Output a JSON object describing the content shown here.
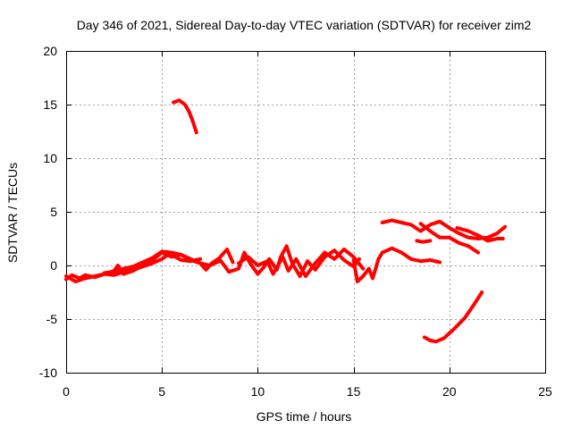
{
  "chart_data": {
    "type": "line",
    "title": "Day 346 of 2021, Sidereal Day-to-day VTEC variation (SDTVAR) for receiver zim2",
    "xlabel": "GPS time / hours",
    "ylabel": "SDTVAR / TECUs",
    "xlim": [
      0,
      25
    ],
    "ylim": [
      -10,
      20
    ],
    "xticks": [
      0,
      5,
      10,
      15,
      20,
      25
    ],
    "yticks": [
      -10,
      -5,
      0,
      5,
      10,
      15,
      20
    ],
    "xtick_labels": [
      "0",
      "5",
      "10",
      "15",
      "20",
      "25"
    ],
    "ytick_labels": [
      "-10",
      "-5",
      "0",
      "5",
      "10",
      "15",
      "20"
    ],
    "grid": true,
    "color": "#ff0000",
    "series": [
      {
        "name": "s1",
        "x": [
          5.6,
          5.9,
          6.2,
          6.4,
          6.6,
          6.8
        ],
        "y": [
          15.2,
          15.4,
          15.0,
          14.4,
          13.5,
          12.4
        ]
      },
      {
        "name": "s2",
        "x": [
          0.0,
          0.3,
          0.7,
          1.0,
          1.5,
          2.0,
          2.5,
          3.0,
          3.5,
          4.0,
          4.5,
          5.0,
          5.3,
          5.7,
          6.0,
          6.5,
          7.0
        ],
        "y": [
          -1.3,
          -0.9,
          -1.2,
          -0.9,
          -1.1,
          -0.8,
          -0.9,
          -0.6,
          -0.4,
          -0.1,
          0.2,
          0.6,
          1.0,
          0.8,
          0.5,
          0.4,
          0.6
        ]
      },
      {
        "name": "s3",
        "x": [
          0.0,
          0.5,
          1.0,
          1.5,
          2.0,
          2.5,
          2.7,
          3.0,
          3.5,
          4.0,
          4.5,
          5.0,
          5.5,
          6.0,
          6.5,
          7.0,
          7.5,
          8.0
        ],
        "y": [
          -1.0,
          -1.5,
          -1.2,
          -1.0,
          -0.8,
          -0.5,
          0.0,
          -0.8,
          -0.5,
          0.0,
          0.5,
          1.2,
          0.8,
          1.0,
          0.5,
          0.2,
          0.0,
          0.4
        ]
      },
      {
        "name": "s4",
        "x": [
          2.0,
          2.5,
          3.0,
          3.5,
          4.0,
          4.5,
          5.0,
          5.5,
          6.0,
          6.5,
          7.0,
          7.3,
          7.6,
          8.0,
          8.4,
          8.7
        ],
        "y": [
          -0.7,
          -0.6,
          -0.3,
          -0.1,
          0.3,
          0.7,
          1.3,
          1.2,
          1.0,
          0.6,
          0.2,
          -0.4,
          0.2,
          0.7,
          1.5,
          0.3
        ]
      },
      {
        "name": "s5",
        "x": [
          8.0,
          8.5,
          9.0,
          9.3,
          9.6,
          10.0,
          10.3,
          10.6,
          11.0,
          11.2,
          11.5,
          11.8,
          12.2,
          12.6,
          13.0,
          13.5,
          14.0,
          14.5,
          15.0,
          15.3
        ],
        "y": [
          0.6,
          -0.6,
          -0.3,
          1.2,
          0.2,
          -0.8,
          -0.2,
          0.6,
          -0.4,
          0.8,
          1.8,
          0.2,
          -1.0,
          0.4,
          -0.4,
          0.8,
          1.4,
          0.5,
          -0.1,
          0.6
        ]
      },
      {
        "name": "s6",
        "x": [
          9.0,
          9.5,
          10.0,
          10.5,
          10.8,
          11.0,
          11.3,
          11.6,
          12.0,
          12.5,
          13.0,
          13.5,
          14.0,
          14.5,
          15.0,
          15.5
        ],
        "y": [
          0.2,
          0.8,
          0.0,
          0.4,
          -0.8,
          -0.2,
          0.8,
          -0.5,
          0.6,
          -1.0,
          0.2,
          1.2,
          0.6,
          1.5,
          0.8,
          -0.3
        ]
      },
      {
        "name": "s7",
        "x": [
          15.0,
          15.2,
          15.5,
          15.8,
          16.0,
          16.3,
          16.5,
          17.0,
          17.5,
          18.0,
          18.5,
          19.0,
          19.5
        ],
        "y": [
          0.5,
          -1.5,
          -1.0,
          -0.3,
          -1.2,
          0.6,
          1.2,
          1.6,
          1.2,
          0.6,
          0.4,
          0.5,
          0.3
        ]
      },
      {
        "name": "s8",
        "x": [
          16.5,
          17.0,
          17.5,
          18.0,
          18.5,
          19.0,
          19.5,
          20.0,
          20.5,
          21.0,
          21.5,
          22.0,
          22.5,
          22.9
        ],
        "y": [
          4.0,
          4.2,
          4.0,
          3.8,
          3.2,
          3.8,
          4.1,
          3.5,
          3.0,
          2.6,
          2.5,
          2.6,
          3.0,
          3.6
        ]
      },
      {
        "name": "s9",
        "x": [
          18.3,
          18.6,
          19.0
        ],
        "y": [
          2.3,
          2.2,
          2.3
        ]
      },
      {
        "name": "s10",
        "x": [
          18.5,
          19.0,
          19.5,
          20.0,
          20.5,
          21.0,
          21.5
        ],
        "y": [
          3.9,
          3.2,
          2.6,
          2.6,
          2.1,
          1.8,
          1.2
        ]
      },
      {
        "name": "s11",
        "x": [
          20.4,
          21.0,
          21.5,
          22.0,
          22.5,
          22.8
        ],
        "y": [
          3.5,
          3.2,
          2.8,
          2.3,
          2.5,
          2.5
        ]
      },
      {
        "name": "s12",
        "x": [
          18.7,
          19.0,
          19.3,
          19.7,
          20.2,
          20.8,
          21.3,
          21.7
        ],
        "y": [
          -6.7,
          -7.0,
          -7.1,
          -6.8,
          -6.0,
          -4.9,
          -3.6,
          -2.5
        ]
      }
    ]
  }
}
